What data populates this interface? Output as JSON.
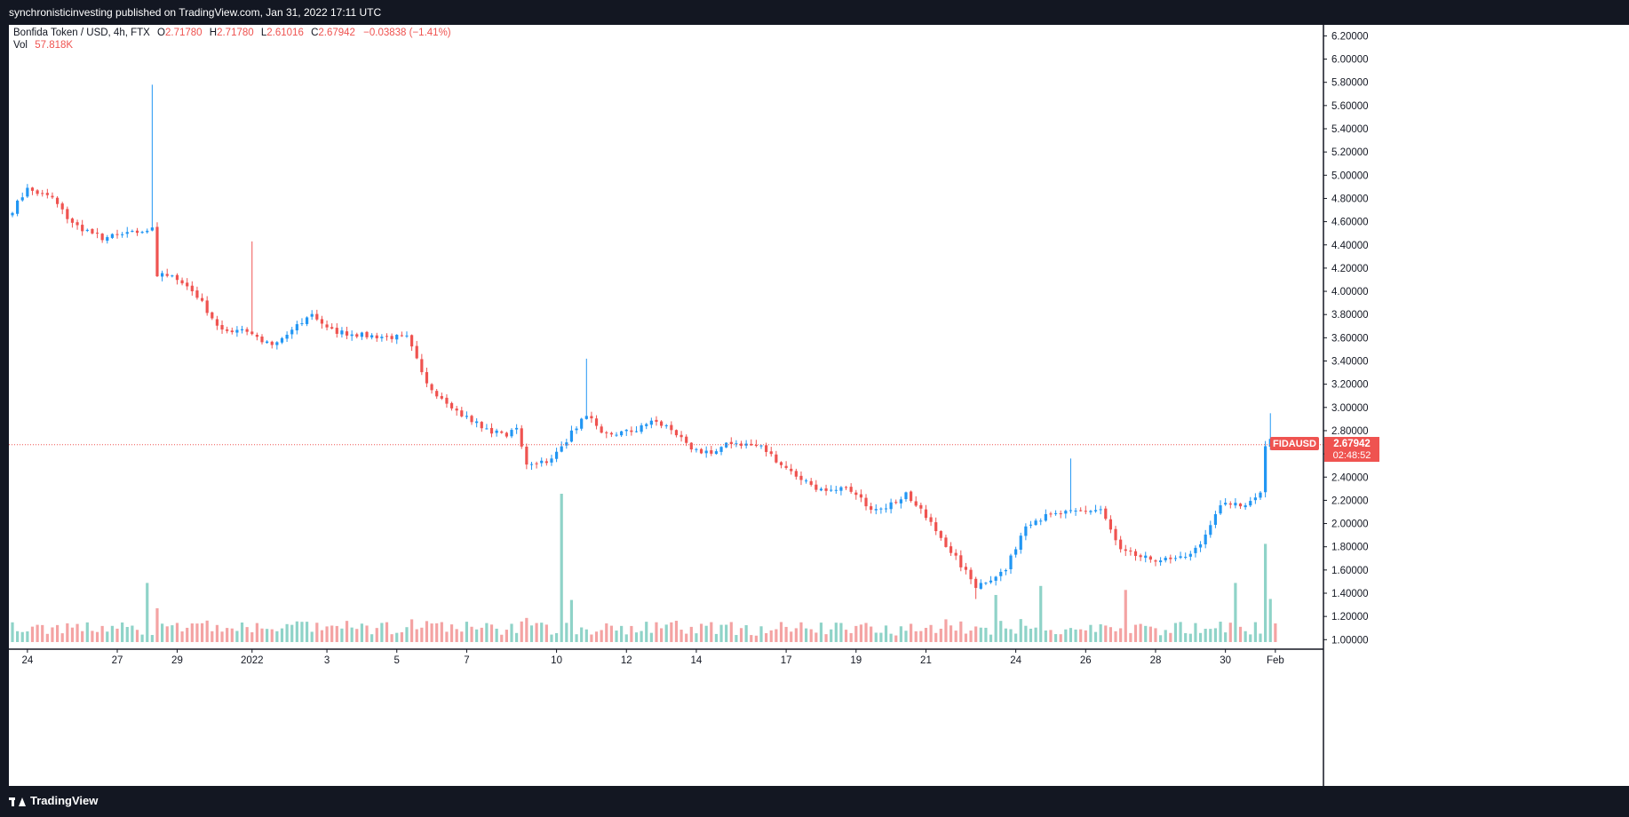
{
  "header": {
    "publish_line": "synchronisticinvesting published on TradingView.com, Jan 31, 2022 17:11 UTC"
  },
  "footer": {
    "brand": "TradingView"
  },
  "legend": {
    "symbol": "Bonfida Token / USD, 4h, FTX",
    "open_label": "O",
    "open": "2.71780",
    "high_label": "H",
    "high": "2.71780",
    "low_label": "L",
    "low": "2.61016",
    "close_label": "C",
    "close": "2.67942",
    "change": "−0.03838 (−1.41%)",
    "vol_label": "Vol",
    "vol_value": "57.818K"
  },
  "price_tag": {
    "symbol": "FIDAUSD",
    "price": "2.67942",
    "countdown": "02:48:52"
  },
  "colors": {
    "up": "#2196f3",
    "down": "#ef5350",
    "vol_up": "#8fd3c8",
    "vol_down": "#f4a3a3",
    "text_red": "#ef5350",
    "background": "#ffffff",
    "frame": "#131722"
  },
  "chart_data": {
    "type": "candlestick",
    "title": "",
    "symbol": "Bonfida Token / USD",
    "interval": "4h",
    "exchange": "FTX",
    "ylim": [
      0.9,
      6.3
    ],
    "y_ticks": [
      "6.20000",
      "6.00000",
      "5.80000",
      "5.60000",
      "5.40000",
      "5.20000",
      "5.00000",
      "4.80000",
      "4.60000",
      "4.40000",
      "4.20000",
      "4.00000",
      "3.80000",
      "3.60000",
      "3.40000",
      "3.20000",
      "3.00000",
      "2.80000",
      "2.60000",
      "2.40000",
      "2.20000",
      "2.00000",
      "1.80000",
      "1.60000",
      "1.40000",
      "1.20000",
      "1.00000"
    ],
    "x_ticks": [
      "24",
      "27",
      "29",
      "2022",
      "3",
      "5",
      "7",
      "10",
      "12",
      "14",
      "17",
      "19",
      "21",
      "24",
      "26",
      "28",
      "30",
      "Feb"
    ],
    "x_tick_bars": [
      3,
      21,
      33,
      48,
      63,
      77,
      91,
      109,
      123,
      137,
      155,
      169,
      183,
      201,
      215,
      229,
      243,
      253
    ],
    "last_price": 2.67942,
    "anchors": [
      [
        0,
        4.7
      ],
      [
        3,
        4.88
      ],
      [
        8,
        4.8
      ],
      [
        12,
        4.58
      ],
      [
        18,
        4.46
      ],
      [
        23,
        4.49
      ],
      [
        27,
        4.53
      ],
      [
        28,
        4.56
      ],
      [
        29,
        4.14
      ],
      [
        33,
        4.12
      ],
      [
        37,
        3.96
      ],
      [
        42,
        3.65
      ],
      [
        46,
        3.68
      ],
      [
        48,
        3.63
      ],
      [
        52,
        3.52
      ],
      [
        56,
        3.66
      ],
      [
        60,
        3.8
      ],
      [
        64,
        3.66
      ],
      [
        70,
        3.62
      ],
      [
        79,
        3.6
      ],
      [
        83,
        3.22
      ],
      [
        87,
        3.02
      ],
      [
        92,
        2.88
      ],
      [
        98,
        2.76
      ],
      [
        101,
        2.8
      ],
      [
        103,
        2.52
      ],
      [
        108,
        2.55
      ],
      [
        112,
        2.78
      ],
      [
        115,
        2.95
      ],
      [
        118,
        2.76
      ],
      [
        125,
        2.8
      ],
      [
        128,
        2.88
      ],
      [
        132,
        2.82
      ],
      [
        136,
        2.62
      ],
      [
        141,
        2.62
      ],
      [
        144,
        2.7
      ],
      [
        150,
        2.66
      ],
      [
        156,
        2.44
      ],
      [
        163,
        2.26
      ],
      [
        167,
        2.3
      ],
      [
        172,
        2.14
      ],
      [
        176,
        2.16
      ],
      [
        179,
        2.26
      ],
      [
        184,
        2.0
      ],
      [
        189,
        1.7
      ],
      [
        193,
        1.46
      ],
      [
        199,
        1.6
      ],
      [
        203,
        2.0
      ],
      [
        207,
        2.06
      ],
      [
        212,
        2.1
      ],
      [
        218,
        2.12
      ],
      [
        222,
        1.76
      ],
      [
        227,
        1.7
      ],
      [
        233,
        1.68
      ],
      [
        238,
        1.8
      ],
      [
        242,
        2.16
      ],
      [
        247,
        2.16
      ],
      [
        250,
        2.28
      ],
      [
        251,
        2.65
      ],
      [
        252,
        2.72
      ],
      [
        253,
        2.68
      ]
    ],
    "spikes": [
      [
        28,
        5.78,
        "high"
      ],
      [
        48,
        4.43,
        "high"
      ],
      [
        115,
        3.42,
        "high"
      ],
      [
        212,
        2.56,
        "high"
      ],
      [
        252,
        2.95,
        "high"
      ],
      [
        193,
        1.35,
        "low"
      ]
    ],
    "volume_peaks": [
      [
        27,
        59
      ],
      [
        110,
        148
      ],
      [
        112,
        42
      ],
      [
        197,
        47
      ],
      [
        206,
        56
      ],
      [
        223,
        52
      ],
      [
        245,
        59
      ],
      [
        251,
        98
      ],
      [
        252,
        43
      ]
    ],
    "n_bars": 254,
    "volume_axis_max": 148
  }
}
